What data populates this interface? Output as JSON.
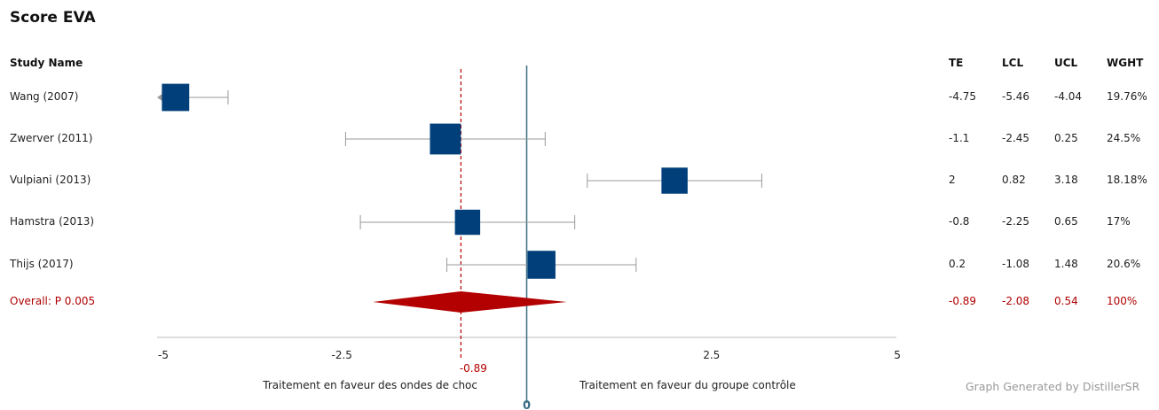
{
  "title": "Score EVA",
  "headers": {
    "study": "Study Name",
    "te": "TE",
    "lcl": "LCL",
    "ucl": "UCL",
    "wght": "WGHT"
  },
  "footer": {
    "credit": "Graph Generated by DistillerSR"
  },
  "colors": {
    "box": "#003f7a",
    "diamond": "#b30000",
    "ci": "#999999",
    "zero_line": "#3b6f86",
    "overall_line": "#b30000"
  },
  "chart_data": {
    "type": "forest",
    "xlim": [
      -5,
      5
    ],
    "ticks": [
      -5,
      -2.5,
      2.5,
      5
    ],
    "zero_label": "0",
    "left_label": "Traitement en faveur des ondes de choc",
    "right_label": "Traitement en faveur du groupe contrôle",
    "studies": [
      {
        "name": "Wang (2007)",
        "te": "-4.75",
        "lcl": "-5.46",
        "ucl": "-4.04",
        "wght": "19.76%",
        "weight": 19.76,
        "te_v": -4.75,
        "lcl_v": -5.46,
        "ucl_v": -4.04
      },
      {
        "name": "Zwerver (2011)",
        "te": "-1.1",
        "lcl": "-2.45",
        "ucl": "0.25",
        "wght": "24.5%",
        "weight": 24.5,
        "te_v": -1.1,
        "lcl_v": -2.45,
        "ucl_v": 0.25
      },
      {
        "name": "Vulpiani (2013)",
        "te": "2",
        "lcl": "0.82",
        "ucl": "3.18",
        "wght": "18.18%",
        "weight": 18.18,
        "te_v": 2,
        "lcl_v": 0.82,
        "ucl_v": 3.18
      },
      {
        "name": "Hamstra (2013)",
        "te": "-0.8",
        "lcl": "-2.25",
        "ucl": "0.65",
        "wght": "17%",
        "weight": 17,
        "te_v": -0.8,
        "lcl_v": -2.25,
        "ucl_v": 0.65
      },
      {
        "name": "Thijs (2017)",
        "te": "0.2",
        "lcl": "-1.08",
        "ucl": "1.48",
        "wght": "20.6%",
        "weight": 20.6,
        "te_v": 0.2,
        "lcl_v": -1.08,
        "ucl_v": 1.48
      }
    ],
    "overall": {
      "name": "Overall: P 0.005",
      "te": "-0.89",
      "lcl": "-2.08",
      "ucl": "0.54",
      "wght": "100%",
      "te_v": -0.89,
      "lcl_v": -2.08,
      "ucl_v": 0.54,
      "label": "-0.89"
    }
  }
}
